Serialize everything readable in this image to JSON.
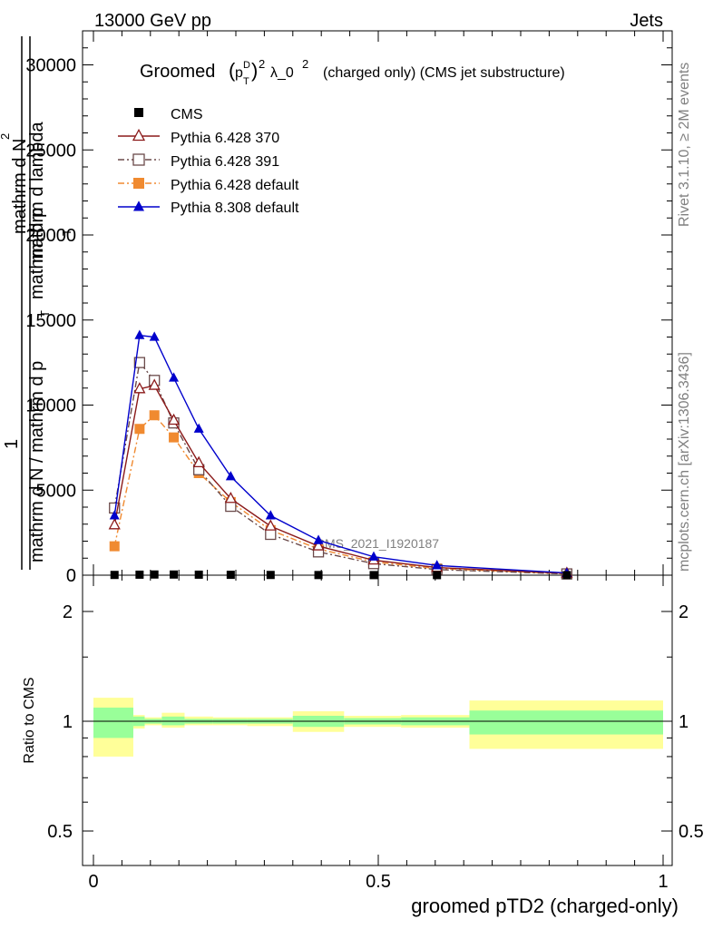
{
  "header": {
    "left": "13000 GeV pp",
    "right": "Jets"
  },
  "title": {
    "prefix": "Groomed",
    "p": "p",
    "sup_d": "D",
    "sub_t": "T",
    "exp2": "2",
    "lambda": "λ_0",
    "exp2b": "2",
    "suffix": "(charged only) (CMS jet substructure)"
  },
  "side_labels": {
    "rivet": "Rivet 3.1.10, ≥ 2M events",
    "mcplots": "mcplots.cern.ch [arXiv:1306.3436]"
  },
  "watermark": "CMS_2021_I1920187",
  "ylabel_main": {
    "one": "1",
    "line1": "mathrm d",
    "sup2": "2",
    "line1b": "N",
    "line2": "mathrm d p",
    "line2sub": "T",
    "line2b": " mathrm d lambda",
    "line3": "mathrm d N / mathrm d p",
    "line3sub": "T",
    "line3b": "mathrm d p"
  },
  "ylabel_ratio": "Ratio to CMS",
  "xlabel": "groomed pTD2 (charged-only)",
  "legend": [
    {
      "label": "CMS",
      "color": "#000000",
      "marker": "filled-square",
      "line": "none"
    },
    {
      "label": "Pythia 6.428 370",
      "color": "#8b1a1a",
      "marker": "open-triangle",
      "line": "solid"
    },
    {
      "label": "Pythia 6.428 391",
      "color": "#6b4a4a",
      "marker": "open-square",
      "line": "dashdot"
    },
    {
      "label": "Pythia 6.428 default",
      "color": "#f08a30",
      "marker": "filled-square",
      "line": "dashdot"
    },
    {
      "label": "Pythia 8.308 default",
      "color": "#0000cc",
      "marker": "filled-triangle",
      "line": "solid"
    }
  ],
  "chart_data": [
    {
      "type": "line",
      "panel": "main",
      "xlim": [
        -0.02,
        1.02
      ],
      "ylim": [
        0,
        32000
      ],
      "x_ticks": [
        0,
        0.5,
        1
      ],
      "y_ticks": [
        0,
        5000,
        10000,
        15000,
        20000,
        25000,
        30000
      ],
      "y_tick_labels": [
        "0",
        "5000",
        "10000",
        "15000",
        "20000",
        "25000",
        "30000"
      ],
      "x": [
        0.037,
        0.081,
        0.107,
        0.141,
        0.185,
        0.241,
        0.311,
        0.395,
        0.492,
        0.603,
        0.831
      ],
      "series": [
        {
          "name": "CMS",
          "values": [
            15,
            30,
            40,
            38,
            30,
            22,
            14,
            9,
            5,
            3,
            1
          ]
        },
        {
          "name": "Pythia 6.428 370",
          "values": [
            2950,
            10950,
            11150,
            9100,
            6600,
            4500,
            2880,
            1710,
            880,
            450,
            110
          ]
        },
        {
          "name": "Pythia 6.428 391",
          "values": [
            3950,
            12500,
            11450,
            8950,
            6200,
            4050,
            2400,
            1370,
            680,
            330,
            75
          ]
        },
        {
          "name": "Pythia 6.428 default",
          "values": [
            1700,
            8600,
            9400,
            8100,
            6000,
            4300,
            2650,
            1540,
            780,
            390,
            85
          ]
        },
        {
          "name": "Pythia 8.308 default",
          "values": [
            3500,
            14100,
            14000,
            11600,
            8600,
            5800,
            3500,
            2050,
            1080,
            570,
            130
          ]
        }
      ]
    },
    {
      "type": "area",
      "panel": "ratio",
      "xlim": [
        -0.02,
        1.02
      ],
      "ylim": [
        0.4,
        2.3
      ],
      "y_ticks": [
        0.5,
        1,
        2
      ],
      "y_tick_labels": [
        "0.5",
        "1",
        "2"
      ],
      "x_ticks": [
        0,
        0.5,
        1
      ],
      "x_tick_labels": [
        "0",
        "0.5",
        "1"
      ],
      "reference": 1.0,
      "bins": [
        {
          "x0": 0.0,
          "x1": 0.07,
          "stat_lo": 0.9,
          "stat_hi": 1.09,
          "tot_lo": 0.8,
          "tot_hi": 1.16
        },
        {
          "x0": 0.07,
          "x1": 0.09,
          "stat_lo": 0.97,
          "stat_hi": 1.03,
          "tot_lo": 0.955,
          "tot_hi": 1.04
        },
        {
          "x0": 0.09,
          "x1": 0.12,
          "stat_lo": 0.985,
          "stat_hi": 1.015,
          "tot_lo": 0.975,
          "tot_hi": 1.025
        },
        {
          "x0": 0.12,
          "x1": 0.16,
          "stat_lo": 0.975,
          "stat_hi": 1.03,
          "tot_lo": 0.96,
          "tot_hi": 1.055
        },
        {
          "x0": 0.16,
          "x1": 0.21,
          "stat_lo": 0.985,
          "stat_hi": 1.015,
          "tot_lo": 0.975,
          "tot_hi": 1.03
        },
        {
          "x0": 0.21,
          "x1": 0.27,
          "stat_lo": 0.985,
          "stat_hi": 1.015,
          "tot_lo": 0.975,
          "tot_hi": 1.025
        },
        {
          "x0": 0.27,
          "x1": 0.35,
          "stat_lo": 0.985,
          "stat_hi": 1.015,
          "tot_lo": 0.97,
          "tot_hi": 1.025
        },
        {
          "x0": 0.35,
          "x1": 0.44,
          "stat_lo": 0.965,
          "stat_hi": 1.035,
          "tot_lo": 0.935,
          "tot_hi": 1.065
        },
        {
          "x0": 0.44,
          "x1": 0.54,
          "stat_lo": 0.98,
          "stat_hi": 1.02,
          "tot_lo": 0.965,
          "tot_hi": 1.035
        },
        {
          "x0": 0.54,
          "x1": 0.66,
          "stat_lo": 0.975,
          "stat_hi": 1.025,
          "tot_lo": 0.96,
          "tot_hi": 1.04
        },
        {
          "x0": 0.66,
          "x1": 1.0,
          "stat_lo": 0.92,
          "stat_hi": 1.07,
          "tot_lo": 0.84,
          "tot_hi": 1.14
        }
      ]
    }
  ]
}
